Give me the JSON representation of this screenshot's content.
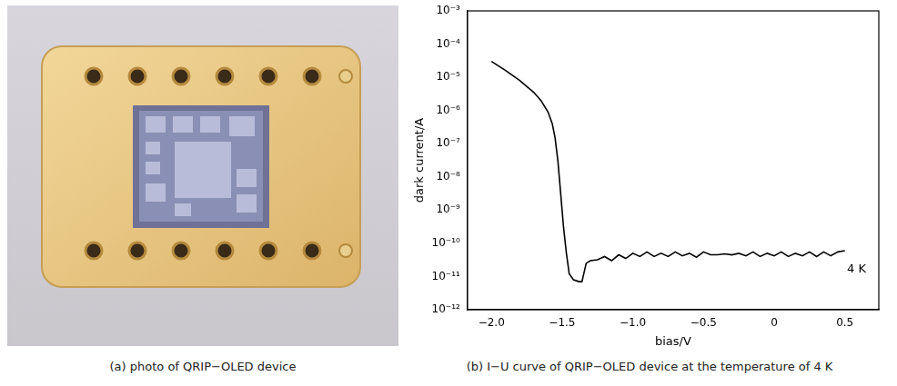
{
  "captions": {
    "a": "(a) photo of QRIP−OLED device",
    "b": "(b) I−U curve of QRIP−OLED device at the temperature of 4 K"
  },
  "chart_data": {
    "type": "line",
    "x_label": "bias/V",
    "y_label": "dark current/A",
    "annotations": [
      "4 K"
    ],
    "log": "y",
    "grid": false,
    "xlim": [
      -2.17,
      0.74
    ],
    "xticks": [
      {
        "value": -2.0,
        "label": "−2.0"
      },
      {
        "value": -1.5,
        "label": "−1.5"
      },
      {
        "value": -1.0,
        "label": "−1.0"
      },
      {
        "value": -0.5,
        "label": "−0.5"
      },
      0,
      0.5
    ],
    "ylim": [
      1e-12,
      0.001
    ],
    "yticks": [
      {
        "value": 1e-12,
        "label": "10⁻¹²"
      },
      {
        "value": 1e-11,
        "label": "10⁻¹¹"
      },
      {
        "value": 1e-10,
        "label": "10⁻¹⁰"
      },
      {
        "value": 1e-09,
        "label": "10⁻⁹"
      },
      {
        "value": 1e-08,
        "label": "10⁻⁸"
      },
      {
        "value": 1e-07,
        "label": "10⁻⁷"
      },
      {
        "value": 1e-06,
        "label": "10⁻⁶"
      },
      {
        "value": 1e-05,
        "label": "10⁻⁵"
      },
      {
        "value": 0.0001,
        "label": "10⁻⁴"
      },
      {
        "value": 0.001,
        "label": "10⁻³"
      }
    ],
    "x": [
      -2.0,
      -1.9,
      -1.8,
      -1.7,
      -1.65,
      -1.6,
      -1.57,
      -1.55,
      -1.53,
      -1.51,
      -1.49,
      -1.47,
      -1.45,
      -1.42,
      -1.38,
      -1.36,
      -1.33,
      -1.3,
      -1.25,
      -1.2,
      -1.15,
      -1.1,
      -1.05,
      -1.0,
      -0.95,
      -0.9,
      -0.85,
      -0.8,
      -0.75,
      -0.7,
      -0.65,
      -0.6,
      -0.55,
      -0.5,
      -0.45,
      -0.4,
      -0.35,
      -0.3,
      -0.25,
      -0.2,
      -0.15,
      -0.1,
      -0.05,
      0,
      0.05,
      0.1,
      0.15,
      0.2,
      0.25,
      0.3,
      0.35,
      0.4,
      0.45,
      0.5
    ],
    "series": [
      {
        "color": "#000000",
        "marker": "none",
        "line_style": "solid",
        "values": [
          3e-05,
          1.6e-05,
          8e-06,
          3.5e-06,
          2e-06,
          9e-07,
          4e-07,
          1.5e-07,
          3e-08,
          3e-09,
          3e-10,
          5e-11,
          1.2e-11,
          8e-12,
          7e-12,
          7e-12,
          2.5e-11,
          3e-11,
          3.2e-11,
          4e-11,
          3e-11,
          4.5e-11,
          3.5e-11,
          5e-11,
          4e-11,
          5.5e-11,
          4e-11,
          5e-11,
          4e-11,
          5.5e-11,
          4.2e-11,
          5e-11,
          3.8e-11,
          5.5e-11,
          4.5e-11,
          4.5e-11,
          4.8e-11,
          4.5e-11,
          5e-11,
          4.2e-11,
          5.5e-11,
          4e-11,
          5e-11,
          4.2e-11,
          5.5e-11,
          4e-11,
          5e-11,
          4.2e-11,
          5.5e-11,
          4e-11,
          5.5e-11,
          4.2e-11,
          5.5e-11,
          6e-11
        ]
      }
    ]
  }
}
